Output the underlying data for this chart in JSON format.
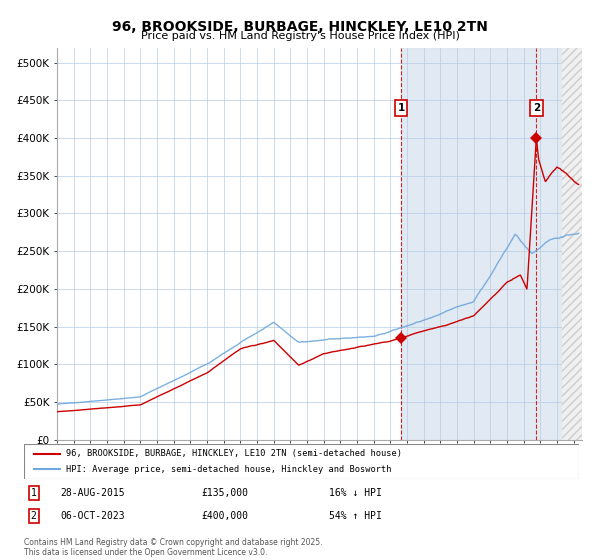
{
  "title": "96, BROOKSIDE, BURBAGE, HINCKLEY, LE10 2TN",
  "subtitle": "Price paid vs. HM Land Registry's House Price Index (HPI)",
  "hpi_color": "#6fa8dc",
  "price_color": "#cc0000",
  "ylim": [
    0,
    520000
  ],
  "yticks": [
    0,
    50000,
    100000,
    150000,
    200000,
    250000,
    300000,
    350000,
    400000,
    450000,
    500000
  ],
  "ytick_labels": [
    "£0",
    "£50K",
    "£100K",
    "£150K",
    "£200K",
    "£250K",
    "£300K",
    "£350K",
    "£400K",
    "£450K",
    "£500K"
  ],
  "xlim_start": 1995.0,
  "xlim_end": 2026.5,
  "sale1_year": 2015.65,
  "sale1_price": 135000,
  "sale2_year": 2023.76,
  "sale2_price": 400000,
  "legend_entry1": "96, BROOKSIDE, BURBAGE, HINCKLEY, LE10 2TN (semi-detached house)",
  "legend_entry2": "HPI: Average price, semi-detached house, Hinckley and Bosworth",
  "footer": "Contains HM Land Registry data © Crown copyright and database right 2025.\nThis data is licensed under the Open Government Licence v3.0."
}
